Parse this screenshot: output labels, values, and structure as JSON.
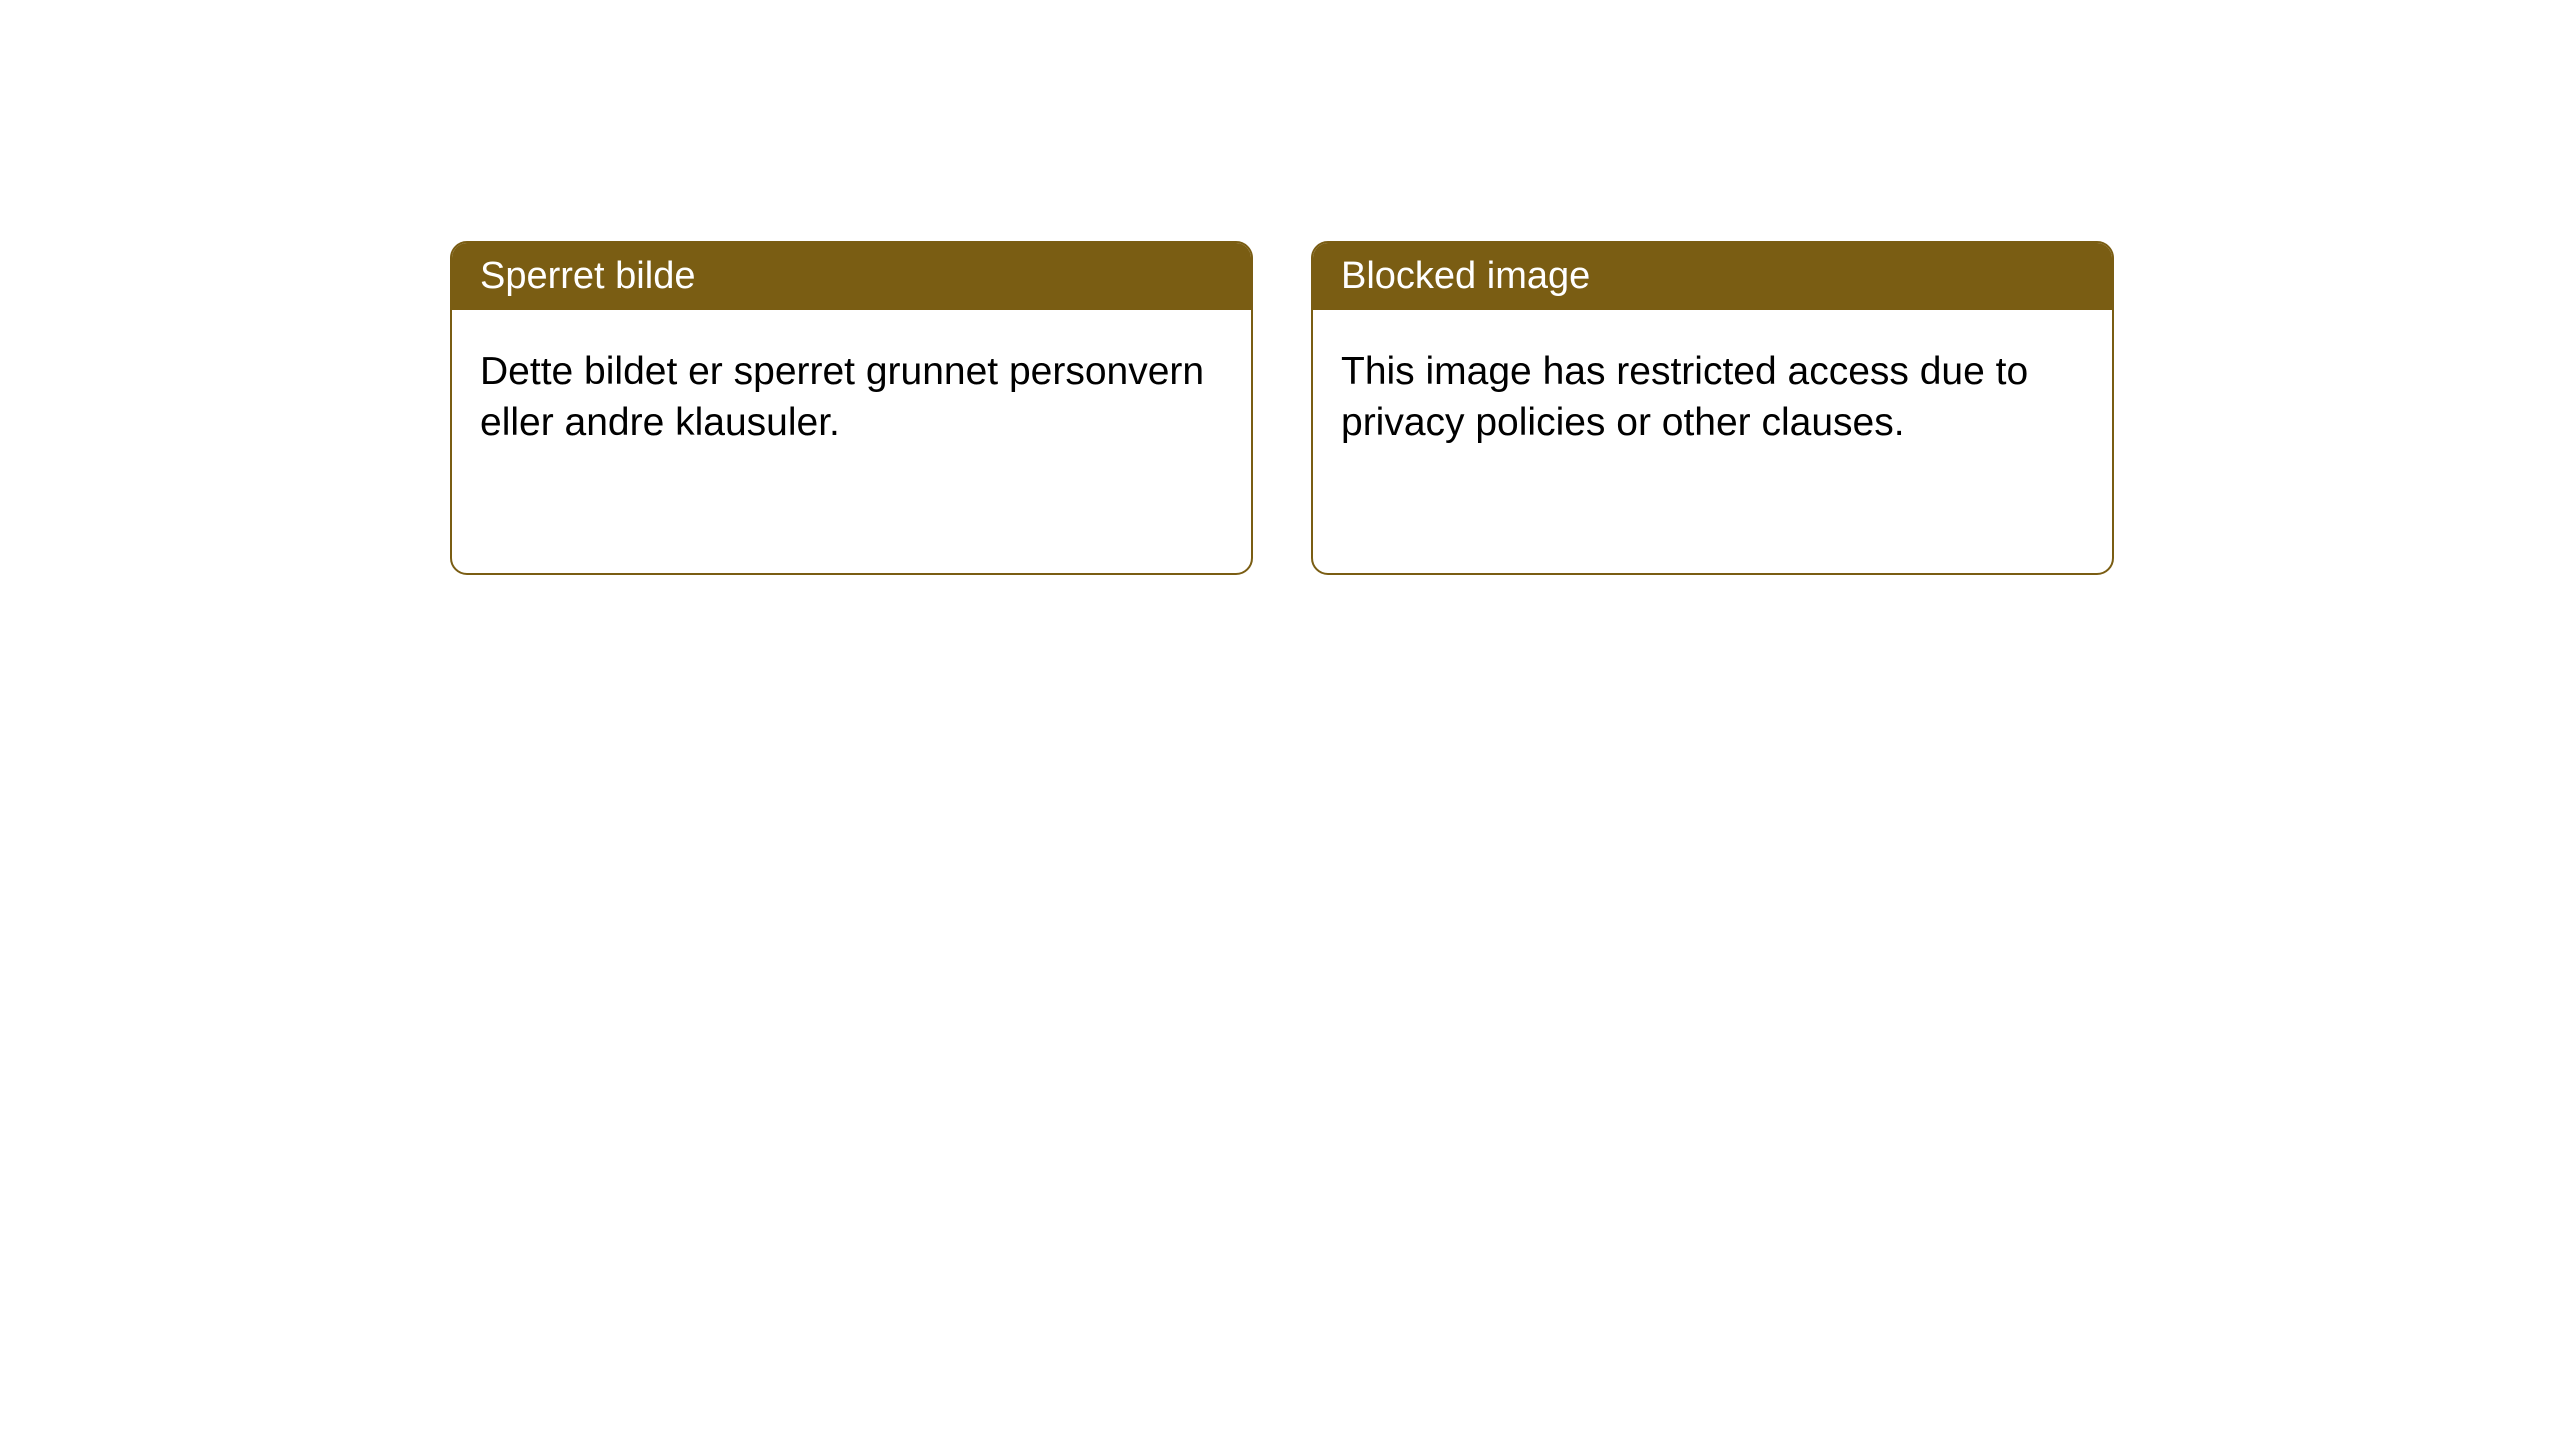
{
  "layout": {
    "background_color": "#ffffff",
    "card_border_color": "#7a5d13",
    "header_bg_color": "#7a5d13",
    "header_text_color": "#ffffff",
    "body_text_color": "#000000",
    "card_border_radius": 17,
    "header_fontsize": 38,
    "body_fontsize": 39
  },
  "cards": [
    {
      "title": "Sperret bilde",
      "body": "Dette bildet er sperret grunnet personvern eller andre klausuler."
    },
    {
      "title": "Blocked image",
      "body": "This image has restricted access due to privacy policies or other clauses."
    }
  ]
}
